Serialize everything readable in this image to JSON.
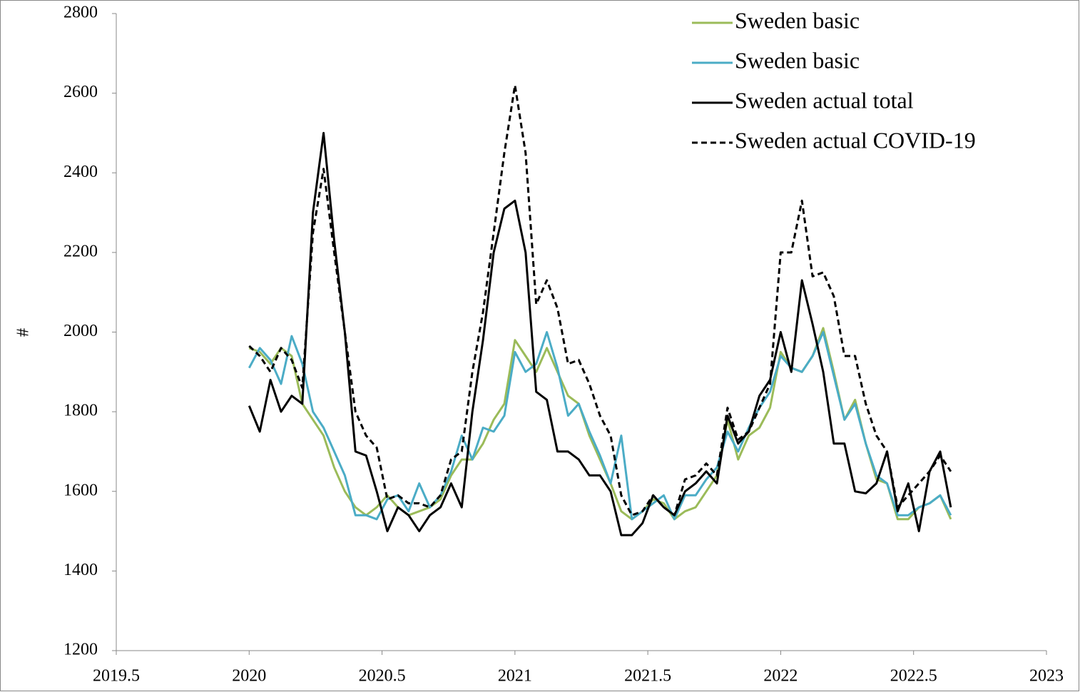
{
  "chart_data": {
    "type": "line",
    "ylabel": "#",
    "xlim": [
      2019.5,
      2023
    ],
    "xticks": [
      2019.5,
      2020,
      2020.5,
      2021,
      2021.5,
      2022,
      2022.5,
      2023
    ],
    "ylim": [
      1200,
      2800
    ],
    "yticks": [
      1200,
      1400,
      1600,
      1800,
      2000,
      2200,
      2400,
      2600,
      2800
    ],
    "legend": "top-right",
    "x": [
      2020.0,
      2020.04,
      2020.08,
      2020.12,
      2020.16,
      2020.2,
      2020.24,
      2020.28,
      2020.32,
      2020.36,
      2020.4,
      2020.44,
      2020.48,
      2020.52,
      2020.56,
      2020.6,
      2020.64,
      2020.68,
      2020.72,
      2020.76,
      2020.8,
      2020.84,
      2020.88,
      2020.92,
      2020.96,
      2021.0,
      2021.04,
      2021.08,
      2021.12,
      2021.16,
      2021.2,
      2021.24,
      2021.28,
      2021.32,
      2021.36,
      2021.4,
      2021.44,
      2021.48,
      2021.52,
      2021.56,
      2021.6,
      2021.64,
      2021.68,
      2021.72,
      2021.76,
      2021.8,
      2021.84,
      2021.88,
      2021.92,
      2021.96,
      2022.0,
      2022.04,
      2022.08,
      2022.12,
      2022.16,
      2022.2,
      2022.24,
      2022.28,
      2022.32,
      2022.36,
      2022.4,
      2022.44,
      2022.48,
      2022.52,
      2022.56,
      2022.6,
      2022.64
    ],
    "series": [
      {
        "name": "Sweden basic",
        "color": "#9bbb59",
        "line_style": "solid",
        "values": [
          1960,
          1950,
          1920,
          1960,
          1940,
          1820,
          1780,
          1740,
          1660,
          1600,
          1560,
          1540,
          1560,
          1590,
          1560,
          1540,
          1550,
          1560,
          1580,
          1640,
          1680,
          1680,
          1720,
          1780,
          1820,
          1980,
          1940,
          1900,
          1960,
          1900,
          1840,
          1820,
          1740,
          1680,
          1620,
          1550,
          1530,
          1550,
          1580,
          1570,
          1530,
          1550,
          1560,
          1600,
          1640,
          1780,
          1680,
          1740,
          1760,
          1810,
          1950,
          1910,
          1900,
          1940,
          2010,
          1900,
          1780,
          1830,
          1720,
          1630,
          1620,
          1530,
          1530,
          1560,
          1570,
          1590,
          1530
        ]
      },
      {
        "name": "Sweden basic",
        "color": "#4bacc6",
        "line_style": "solid",
        "values": [
          1910,
          1960,
          1930,
          1870,
          1990,
          1920,
          1800,
          1760,
          1700,
          1640,
          1540,
          1540,
          1530,
          1580,
          1590,
          1550,
          1620,
          1560,
          1590,
          1650,
          1740,
          1680,
          1760,
          1750,
          1790,
          1950,
          1900,
          1920,
          2000,
          1910,
          1790,
          1820,
          1750,
          1690,
          1620,
          1740,
          1530,
          1550,
          1570,
          1590,
          1530,
          1590,
          1590,
          1630,
          1660,
          1750,
          1700,
          1760,
          1810,
          1850,
          1940,
          1910,
          1900,
          1940,
          2000,
          1890,
          1780,
          1820,
          1720,
          1640,
          1620,
          1540,
          1540,
          1560,
          1570,
          1590,
          1540
        ]
      },
      {
        "name": "Sweden actual total",
        "color": "#000000",
        "line_style": "solid",
        "values": [
          1815,
          1750,
          1880,
          1800,
          1840,
          1820,
          2300,
          2500,
          2230,
          2000,
          1700,
          1690,
          1600,
          1500,
          1560,
          1540,
          1500,
          1540,
          1560,
          1620,
          1560,
          1800,
          1980,
          2200,
          2310,
          2330,
          2200,
          1850,
          1830,
          1700,
          1700,
          1680,
          1640,
          1640,
          1600,
          1490,
          1490,
          1520,
          1590,
          1560,
          1540,
          1600,
          1620,
          1650,
          1620,
          1790,
          1720,
          1750,
          1840,
          1880,
          2000,
          1900,
          2130,
          2020,
          1900,
          1720,
          1720,
          1600,
          1595,
          1620,
          1700,
          1550,
          1620,
          1500,
          1650,
          1700,
          1560
        ]
      },
      {
        "name": "Sweden actual COVID-19",
        "color": "#000000",
        "line_style": "dashed",
        "values": [
          1965,
          1940,
          1900,
          1960,
          1930,
          1860,
          2250,
          2410,
          2200,
          2000,
          1800,
          1740,
          1710,
          1580,
          1590,
          1570,
          1570,
          1560,
          1590,
          1680,
          1700,
          1900,
          2050,
          2250,
          2450,
          2620,
          2450,
          2070,
          2130,
          2060,
          1920,
          1930,
          1870,
          1790,
          1740,
          1590,
          1540,
          1550,
          1590,
          1560,
          1540,
          1630,
          1640,
          1670,
          1640,
          1810,
          1730,
          1750,
          1810,
          1870,
          2200,
          2200,
          2330,
          2140,
          2150,
          2090,
          1940,
          1940,
          1820,
          1740,
          1700,
          1560,
          1590,
          1620,
          1650,
          1690,
          1650
        ]
      }
    ]
  }
}
